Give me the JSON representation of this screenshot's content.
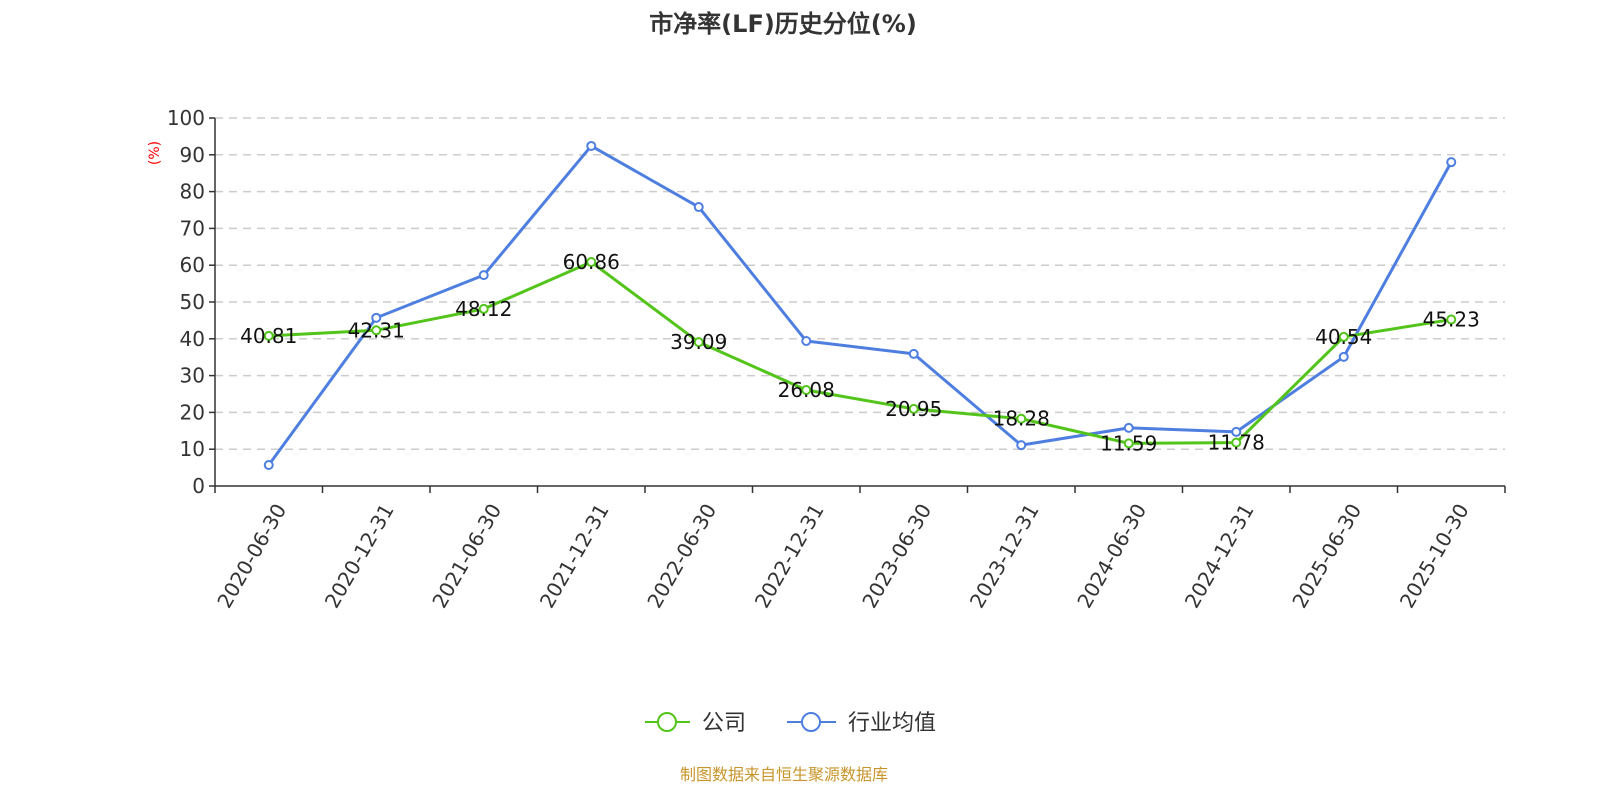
{
  "chart_data": {
    "type": "line",
    "title": "市净率(LF)历史分位(%)",
    "ylabel": "(%)",
    "xlabel": "",
    "ylim": [
      0,
      100
    ],
    "yticks": [
      "0",
      "10",
      "20",
      "30",
      "40",
      "50",
      "60",
      "70",
      "80",
      "90",
      "100"
    ],
    "grid": true,
    "legend_placement": "bottom-center",
    "categories": [
      "2020-06-30",
      "2020-12-31",
      "2021-06-30",
      "2021-12-31",
      "2022-06-30",
      "2022-12-31",
      "2023-06-30",
      "2023-12-31",
      "2024-06-30",
      "2024-12-31",
      "2025-06-30",
      "2025-10-30"
    ],
    "series": [
      {
        "name": "公司",
        "color": "#52c41a",
        "labels_shown": true,
        "values": [
          40.81,
          42.31,
          48.12,
          60.86,
          39.09,
          26.08,
          20.95,
          18.28,
          11.59,
          11.78,
          40.54,
          45.23
        ]
      },
      {
        "name": "行业均值",
        "color": "#4e7fe0",
        "labels_shown": false,
        "values": [
          5.7,
          45.7,
          57.3,
          92.4,
          75.8,
          39.4,
          35.9,
          11.1,
          15.8,
          14.7,
          35.1,
          88.0
        ]
      }
    ]
  },
  "source": "制图数据来自恒生聚源数据库"
}
